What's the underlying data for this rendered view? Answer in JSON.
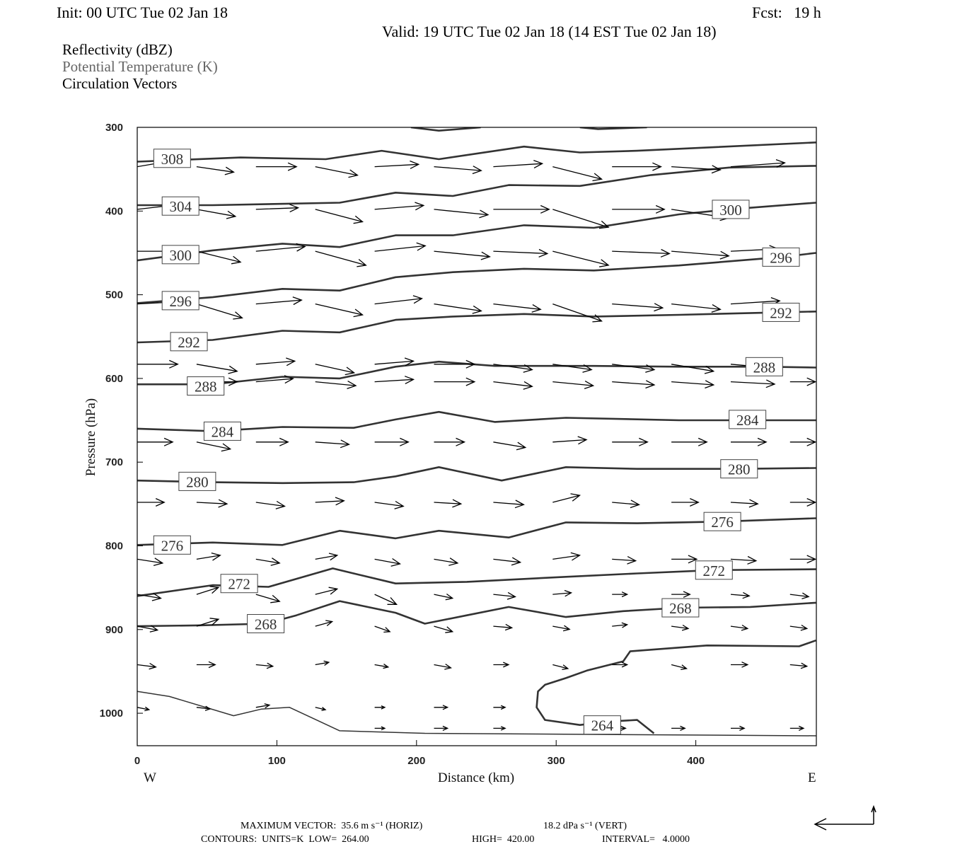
{
  "header": {
    "init": "Init: 00 UTC Tue 02 Jan 18",
    "fcst": "Fcst:   19 h",
    "valid": "Valid: 19 UTC Tue 02 Jan 18 (14 EST Tue 02 Jan 18)"
  },
  "legend": {
    "reflectivity": "Reflectivity (dBZ)",
    "theta": "Potential Temperature (K)",
    "vectors": "Circulation Vectors"
  },
  "footer": {
    "max_vector": "MAXIMUM VECTOR:  35.6 m s⁻¹ (HORIZ)",
    "max_vert": "18.2 dPa s⁻¹ (VERT)",
    "contours": "CONTOURS:  UNITS=K  LOW=  264.00",
    "high": "HIGH=  420.00",
    "interval": "INTERVAL=   4.0000"
  },
  "chart_data": {
    "type": "line",
    "subtype": "cross-section contour + vectors",
    "xlabel": "Distance (km)",
    "ylabel": "Pressure (hPa)",
    "xlim": [
      0,
      486
    ],
    "ylim": [
      300,
      1040
    ],
    "y_inverted": true,
    "xticks": [
      0,
      100,
      200,
      300,
      400
    ],
    "yticks": [
      300,
      400,
      500,
      600,
      700,
      800,
      900,
      1000
    ],
    "x_end_labels": {
      "left": "W",
      "right": "E"
    },
    "contour_units": "K",
    "contour_low": 264,
    "contour_high": 420,
    "contour_interval": 4,
    "contours": [
      {
        "level": 312,
        "labels": [],
        "points": [
          [
            196,
            300
          ],
          [
            216,
            304
          ],
          [
            246,
            300
          ]
        ]
      },
      {
        "level": 312,
        "labels": [],
        "points": [
          [
            317,
            300
          ],
          [
            330,
            302
          ],
          [
            365,
            300
          ]
        ]
      },
      {
        "level": 308,
        "labels": [
          [
            25,
            337
          ]
        ],
        "points": [
          [
            0,
            341
          ],
          [
            74,
            336
          ],
          [
            135,
            338
          ],
          [
            175,
            328
          ],
          [
            216,
            338
          ],
          [
            277,
            323
          ],
          [
            317,
            330
          ],
          [
            358,
            328
          ],
          [
            486,
            318
          ]
        ]
      },
      {
        "level": 304,
        "labels": [
          [
            31,
            394
          ]
        ],
        "points": [
          [
            0,
            393
          ],
          [
            54,
            393
          ],
          [
            145,
            390
          ],
          [
            185,
            378
          ],
          [
            226,
            382
          ],
          [
            266,
            369
          ],
          [
            317,
            370
          ],
          [
            368,
            357
          ],
          [
            424,
            348
          ],
          [
            486,
            346
          ]
        ]
      },
      {
        "level": 300,
        "labels": [
          [
            31,
            452
          ],
          [
            425,
            398
          ]
        ],
        "points": [
          [
            0,
            459
          ],
          [
            54,
            447
          ],
          [
            104,
            439
          ],
          [
            145,
            443
          ],
          [
            185,
            429
          ],
          [
            226,
            429
          ],
          [
            277,
            417
          ],
          [
            327,
            420
          ],
          [
            388,
            404
          ],
          [
            424,
            398
          ],
          [
            486,
            390
          ]
        ]
      },
      {
        "level": 296,
        "labels": [
          [
            31,
            507
          ],
          [
            461,
            455
          ]
        ],
        "points": [
          [
            0,
            510
          ],
          [
            54,
            503
          ],
          [
            104,
            493
          ],
          [
            145,
            495
          ],
          [
            185,
            479
          ],
          [
            226,
            473
          ],
          [
            277,
            469
          ],
          [
            327,
            471
          ],
          [
            388,
            465
          ],
          [
            461,
            455
          ],
          [
            486,
            450
          ]
        ]
      },
      {
        "level": 292,
        "labels": [
          [
            37,
            556
          ],
          [
            461,
            521
          ]
        ],
        "points": [
          [
            0,
            557
          ],
          [
            54,
            554
          ],
          [
            104,
            543
          ],
          [
            145,
            545
          ],
          [
            185,
            530
          ],
          [
            226,
            526
          ],
          [
            277,
            523
          ],
          [
            327,
            526
          ],
          [
            388,
            524
          ],
          [
            461,
            521
          ],
          [
            486,
            520
          ]
        ]
      },
      {
        "level": 288,
        "labels": [
          [
            49,
            609
          ],
          [
            449,
            586
          ]
        ],
        "points": [
          [
            0,
            607
          ],
          [
            54,
            607
          ],
          [
            104,
            598
          ],
          [
            145,
            600
          ],
          [
            185,
            586
          ],
          [
            216,
            580
          ],
          [
            256,
            585
          ],
          [
            327,
            585
          ],
          [
            388,
            586
          ],
          [
            449,
            586
          ],
          [
            486,
            587
          ]
        ]
      },
      {
        "level": 284,
        "labels": [
          [
            61,
            663
          ],
          [
            437,
            649
          ]
        ],
        "points": [
          [
            0,
            660
          ],
          [
            54,
            663
          ],
          [
            104,
            658
          ],
          [
            155,
            659
          ],
          [
            185,
            649
          ],
          [
            216,
            640
          ],
          [
            256,
            652
          ],
          [
            307,
            647
          ],
          [
            388,
            650
          ],
          [
            486,
            650
          ]
        ]
      },
      {
        "level": 280,
        "labels": [
          [
            43,
            723
          ],
          [
            431,
            708
          ]
        ],
        "points": [
          [
            0,
            722
          ],
          [
            54,
            724
          ],
          [
            104,
            725
          ],
          [
            155,
            724
          ],
          [
            185,
            717
          ],
          [
            216,
            706
          ],
          [
            261,
            722
          ],
          [
            307,
            706
          ],
          [
            358,
            708
          ],
          [
            431,
            708
          ],
          [
            486,
            707
          ]
        ]
      },
      {
        "level": 276,
        "labels": [
          [
            25,
            799
          ],
          [
            419,
            771
          ]
        ],
        "points": [
          [
            0,
            799
          ],
          [
            54,
            796
          ],
          [
            104,
            799
          ],
          [
            145,
            782
          ],
          [
            185,
            791
          ],
          [
            216,
            782
          ],
          [
            266,
            790
          ],
          [
            307,
            772
          ],
          [
            358,
            773
          ],
          [
            419,
            771
          ],
          [
            486,
            767
          ]
        ]
      },
      {
        "level": 272,
        "labels": [
          [
            73,
            845
          ],
          [
            413,
            829
          ]
        ],
        "points": [
          [
            0,
            860
          ],
          [
            54,
            847
          ],
          [
            94,
            849
          ],
          [
            140,
            827
          ],
          [
            185,
            845
          ],
          [
            236,
            843
          ],
          [
            307,
            837
          ],
          [
            358,
            833
          ],
          [
            413,
            829
          ],
          [
            486,
            828
          ]
        ]
      },
      {
        "level": 268,
        "labels": [
          [
            92,
            893
          ],
          [
            389,
            874
          ]
        ],
        "points": [
          [
            0,
            896
          ],
          [
            44,
            895
          ],
          [
            92,
            893
          ],
          [
            114,
            883
          ],
          [
            145,
            866
          ],
          [
            185,
            880
          ],
          [
            206,
            893
          ],
          [
            236,
            883
          ],
          [
            266,
            873
          ],
          [
            307,
            885
          ],
          [
            348,
            878
          ],
          [
            389,
            874
          ],
          [
            439,
            873
          ],
          [
            486,
            868
          ]
        ]
      },
      {
        "level": 264,
        "labels": [
          [
            333,
            1014
          ]
        ],
        "points": [
          [
            486,
            913
          ],
          [
            474,
            920
          ],
          [
            408,
            919
          ],
          [
            353,
            926
          ],
          [
            348,
            938
          ],
          [
            322,
            949
          ],
          [
            307,
            958
          ],
          [
            292,
            966
          ],
          [
            287,
            974
          ],
          [
            286,
            993
          ],
          [
            292,
            1008
          ],
          [
            317,
            1014
          ],
          [
            337,
            1010
          ],
          [
            358,
            1008
          ],
          [
            370,
            1024
          ]
        ]
      },
      {
        "level": 264,
        "labels": [],
        "thin": true,
        "points": [
          [
            0,
            974
          ],
          [
            23,
            980
          ],
          [
            69,
            1003
          ],
          [
            89,
            995
          ],
          [
            109,
            993
          ],
          [
            145,
            1021
          ],
          [
            206,
            1024
          ],
          [
            486,
            1027
          ]
        ]
      }
    ],
    "vectors": {
      "horiz_units": "m s-1",
      "vert_units": "dPa s-1",
      "ref_horiz": 35.6,
      "ref_vert": 18.2,
      "x_spacing_km": 42.5,
      "rows": [
        {
          "p": 347,
          "u": [
            19,
            22,
            24,
            25,
            26,
            28,
            29,
            29,
            29,
            29,
            32
          ],
          "w": [
            -7,
            7,
            0,
            11,
            -3,
            5,
            -4,
            16,
            0,
            4,
            -5
          ]
        },
        {
          "p": 398,
          "u": [
            20,
            23,
            25,
            28,
            29,
            32,
            33,
            33,
            31,
            34
          ],
          "w": [
            -5,
            9,
            -2,
            16,
            -5,
            7,
            0,
            23,
            0,
            11
          ]
        },
        {
          "p": 448,
          "u": [
            26,
            26,
            29,
            30,
            30,
            33,
            32,
            33,
            34,
            34,
            28
          ],
          "w": [
            0,
            14,
            -6,
            18,
            -7,
            7,
            3,
            18,
            3,
            6,
            -3
          ]
        },
        {
          "p": 511,
          "u": [
            26,
            27,
            27,
            28,
            28,
            28,
            28,
            29,
            30,
            29,
            29
          ],
          "w": [
            -3,
            18,
            -5,
            14,
            -7,
            9,
            7,
            22,
            5,
            7,
            -4
          ]
        },
        {
          "p": 583,
          "u": [
            24,
            24,
            23,
            23,
            23,
            24,
            23,
            23,
            25,
            25,
            26
          ],
          "w": [
            0,
            9,
            -4,
            11,
            -4,
            0,
            7,
            7,
            7,
            9,
            5
          ]
        },
        {
          "p": 604,
          "u": [
            null,
            24,
            22,
            24,
            23,
            24,
            23,
            24,
            25,
            25,
            26,
            15
          ],
          "w": [
            0,
            0,
            -4,
            5,
            -3,
            0,
            6,
            5,
            4,
            4,
            3,
            0
          ]
        },
        {
          "p": 676,
          "u": [
            21,
            20,
            19,
            20,
            20,
            18,
            19,
            20,
            21,
            21,
            21,
            15
          ],
          "w": [
            0,
            9,
            0,
            3,
            0,
            0,
            7,
            -3,
            0,
            0,
            0,
            0
          ]
        },
        {
          "p": 748,
          "u": [
            16,
            18,
            17,
            17,
            17,
            16,
            18,
            16,
            16,
            16,
            16,
            15
          ],
          "w": [
            0,
            2,
            5,
            -2,
            5,
            2,
            3,
            -9,
            3,
            0,
            2,
            0
          ]
        },
        {
          "p": 816,
          "u": [
            15,
            14,
            14,
            13,
            15,
            14,
            16,
            16,
            14,
            15,
            15,
            15
          ],
          "w": [
            5,
            -5,
            5,
            -5,
            6,
            5,
            4,
            -5,
            2,
            0,
            2,
            0
          ]
        },
        {
          "p": 858,
          "u": [
            14,
            13,
            14,
            13,
            13,
            11,
            13,
            11,
            9,
            11,
            11,
            11
          ],
          "w": [
            5,
            -9,
            9,
            -7,
            13,
            5,
            3,
            -2,
            0,
            0,
            2,
            3
          ]
        },
        {
          "p": 896,
          "u": [
            12,
            13,
            11,
            10,
            9,
            11,
            11,
            10,
            9,
            10,
            10,
            10
          ],
          "w": [
            5,
            -9,
            7,
            -6,
            7,
            7,
            2,
            4,
            -2,
            3,
            3,
            3
          ]
        },
        {
          "p": 942,
          "u": [
            11,
            11,
            10,
            8,
            8,
            10,
            9,
            9,
            9,
            9,
            10,
            10
          ],
          "w": [
            3,
            0,
            2,
            -3,
            3,
            4,
            0,
            5,
            0,
            5,
            0,
            2
          ]
        },
        {
          "p": 993,
          "u": [
            7,
            8,
            8,
            6,
            6,
            8,
            7
          ],
          "w": [
            3,
            2,
            -3,
            3,
            0,
            0,
            0
          ]
        },
        {
          "p": 1018,
          "u": [
            null,
            null,
            null,
            null,
            6,
            8,
            7,
            null,
            8,
            8,
            8,
            8
          ],
          "w": [
            0,
            0,
            0,
            0,
            0,
            0,
            0,
            0,
            0,
            0,
            0,
            0
          ]
        }
      ]
    }
  }
}
